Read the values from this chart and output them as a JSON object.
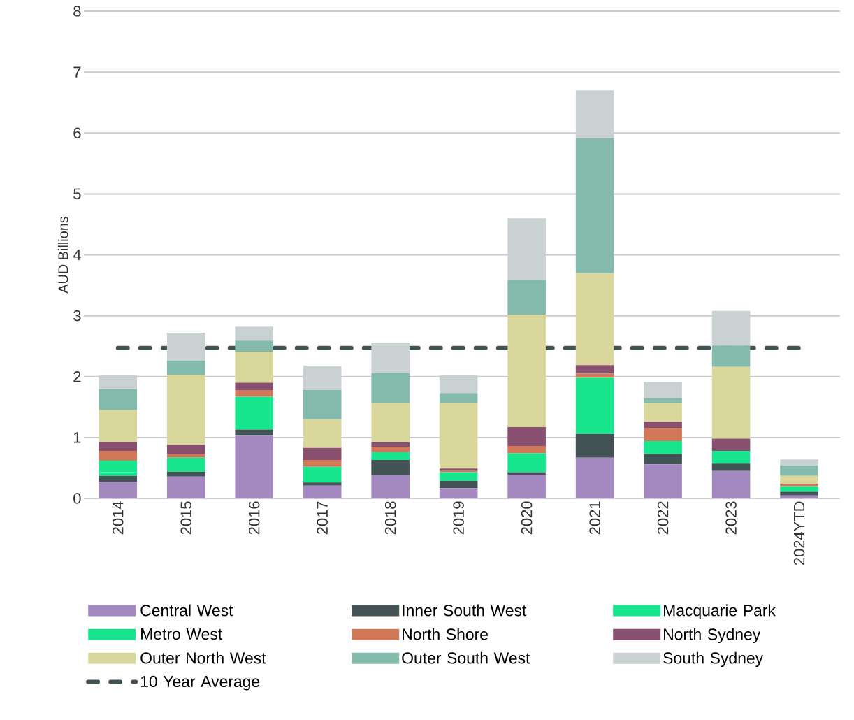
{
  "chart_data": {
    "type": "bar",
    "stacked": true,
    "ylabel": "AUD Billions",
    "categories": [
      "2014",
      "2015",
      "2016",
      "2017",
      "2018",
      "2019",
      "2020",
      "2021",
      "2022",
      "2023",
      "2024YTD"
    ],
    "series": [
      {
        "name": "Central West",
        "color": "#a389bf",
        "values": [
          0.27,
          0.36,
          1.03,
          0.21,
          0.38,
          0.17,
          0.39,
          0.67,
          0.56,
          0.45,
          0.05
        ]
      },
      {
        "name": "Inner South West",
        "color": "#435254",
        "values": [
          0.1,
          0.08,
          0.1,
          0.05,
          0.25,
          0.12,
          0.04,
          0.39,
          0.17,
          0.12,
          0.06
        ]
      },
      {
        "name": "Macquarie Park",
        "color": "#17e68e",
        "values": [
          0.06,
          0,
          0.04,
          0,
          0,
          0,
          0,
          0,
          0,
          0,
          0
        ]
      },
      {
        "name": "Metro West",
        "color": "#17e68e",
        "values": [
          0.19,
          0.23,
          0.5,
          0.26,
          0.13,
          0.14,
          0.31,
          0.92,
          0.21,
          0.21,
          0.09
        ]
      },
      {
        "name": "North Shore",
        "color": "#d17858",
        "values": [
          0.16,
          0.06,
          0.1,
          0.11,
          0.08,
          0.03,
          0.12,
          0.07,
          0.22,
          0,
          0.04
        ]
      },
      {
        "name": "North Sydney",
        "color": "#884f6f",
        "values": [
          0.15,
          0.15,
          0.13,
          0.2,
          0.08,
          0.03,
          0.31,
          0.14,
          0.1,
          0.2,
          0
        ]
      },
      {
        "name": "Outer North West",
        "color": "#dad79c",
        "values": [
          0.52,
          1.15,
          0.51,
          0.47,
          0.65,
          1.08,
          1.85,
          1.51,
          0.31,
          1.18,
          0.13
        ]
      },
      {
        "name": "Outer South West",
        "color": "#83baab",
        "values": [
          0.34,
          0.23,
          0.18,
          0.48,
          0.49,
          0.16,
          0.57,
          2.21,
          0.07,
          0.35,
          0.17
        ]
      },
      {
        "name": "South Sydney",
        "color": "#cad1d3",
        "values": [
          0.23,
          0.46,
          0.23,
          0.4,
          0.5,
          0.29,
          1.01,
          0.79,
          0.27,
          0.57,
          0.1
        ]
      }
    ],
    "ref_lines": [
      {
        "axis": "y",
        "value": 2.47,
        "label": "10 Year Average",
        "color": "#435254",
        "line_style": "dashed"
      }
    ],
    "ylim": [
      0,
      8
    ],
    "yticks": [
      0,
      1,
      2,
      3,
      4,
      5,
      6,
      7,
      8
    ],
    "grid": "y",
    "legend": "bottom"
  }
}
